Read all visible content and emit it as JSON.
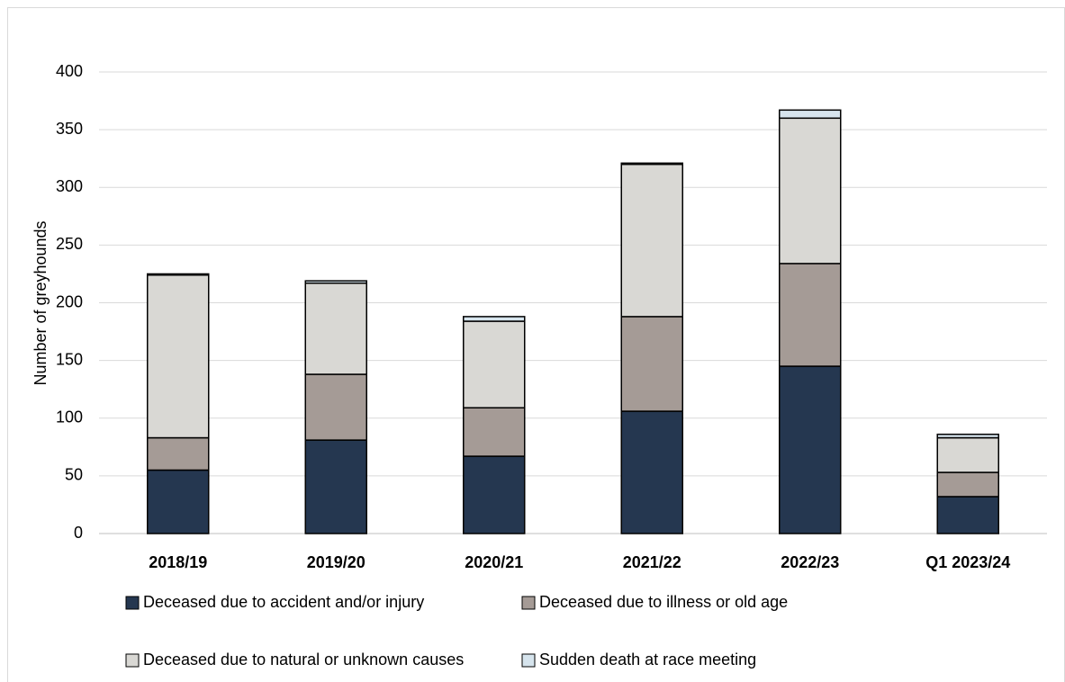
{
  "chart_data": {
    "type": "stacked_bar",
    "y_axis_label": "Number of greyhounds",
    "categories": [
      "2018/19",
      "2019/20",
      "2020/21",
      "2021/22",
      "2022/23",
      "Q1 2023/24"
    ],
    "series": [
      {
        "name": "Deceased due to accident and/or injury",
        "color": "#253750",
        "values": [
          55,
          81,
          67,
          106,
          145,
          32
        ]
      },
      {
        "name": "Deceased due to illness or old age",
        "color": "#a59b96",
        "values": [
          28,
          57,
          42,
          82,
          89,
          21
        ]
      },
      {
        "name": "Deceased due to natural or unknown causes",
        "color": "#d9d8d4",
        "values": [
          141,
          79,
          75,
          132,
          126,
          30
        ]
      },
      {
        "name": "Sudden death at race meeting",
        "color": "#d6e4ed",
        "values": [
          1,
          2,
          4,
          1,
          7,
          3
        ]
      }
    ],
    "ylim": [
      0,
      400
    ],
    "yticks": [
      0,
      50,
      100,
      150,
      200,
      250,
      300,
      350,
      400
    ],
    "grid": true
  }
}
